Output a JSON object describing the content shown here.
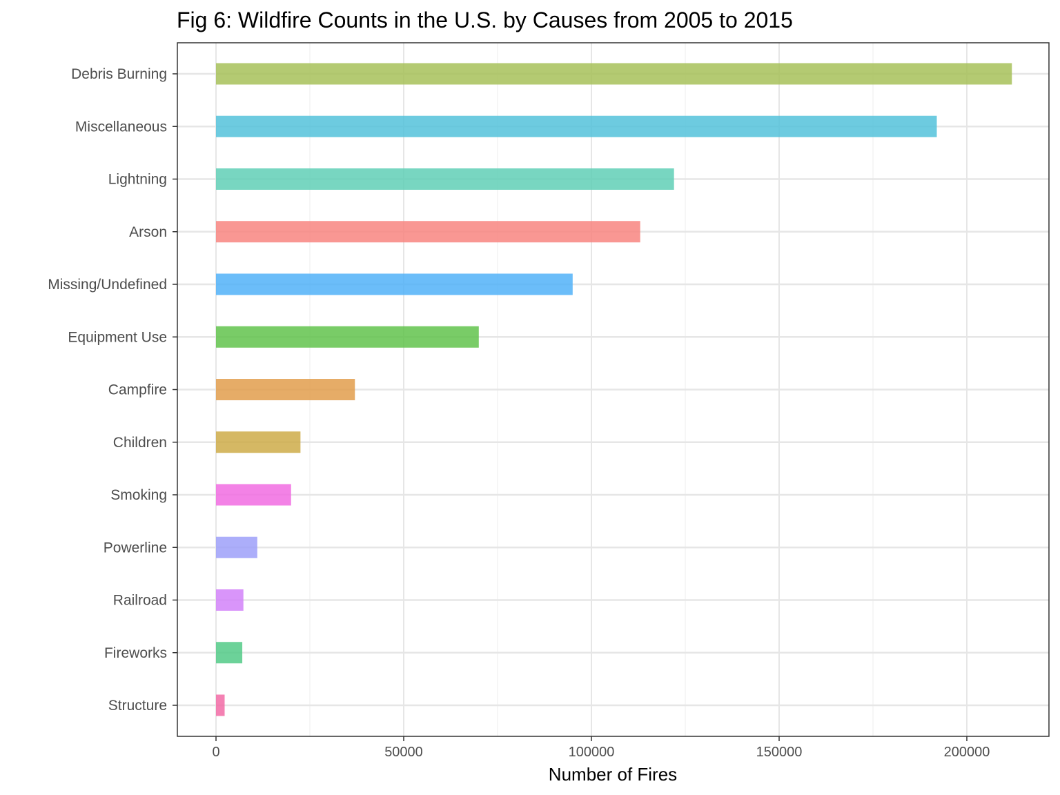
{
  "chart_data": {
    "type": "bar",
    "orientation": "horizontal",
    "title": "Fig 6: Wildfire Counts in the U.S. by Causes from 2005 to 2015",
    "xlabel": "Number of Fires",
    "ylabel": "",
    "xlim": [
      -10000,
      222000
    ],
    "xticks": [
      0,
      50000,
      100000,
      150000,
      200000
    ],
    "xtick_labels": [
      "0",
      "50000",
      "100000",
      "150000",
      "200000"
    ],
    "grid": true,
    "legend": "none",
    "categories": [
      "Debris Burning",
      "Miscellaneous",
      "Lightning",
      "Arson",
      "Missing/Undefined",
      "Equipment Use",
      "Campfire",
      "Children",
      "Smoking",
      "Powerline",
      "Railroad",
      "Fireworks",
      "Structure"
    ],
    "values": [
      212000,
      192000,
      122000,
      113000,
      95000,
      70000,
      37000,
      22500,
      20000,
      11000,
      7300,
      7000,
      2300
    ],
    "colors": [
      "#A3BE53",
      "#4DBFD9",
      "#5ACDB3",
      "#F8807B",
      "#4BAEF8",
      "#5CC146",
      "#E19A45",
      "#CCA842",
      "#F067E0",
      "#9A9CF9",
      "#D17EF9",
      "#4CC883",
      "#F265A2"
    ]
  }
}
